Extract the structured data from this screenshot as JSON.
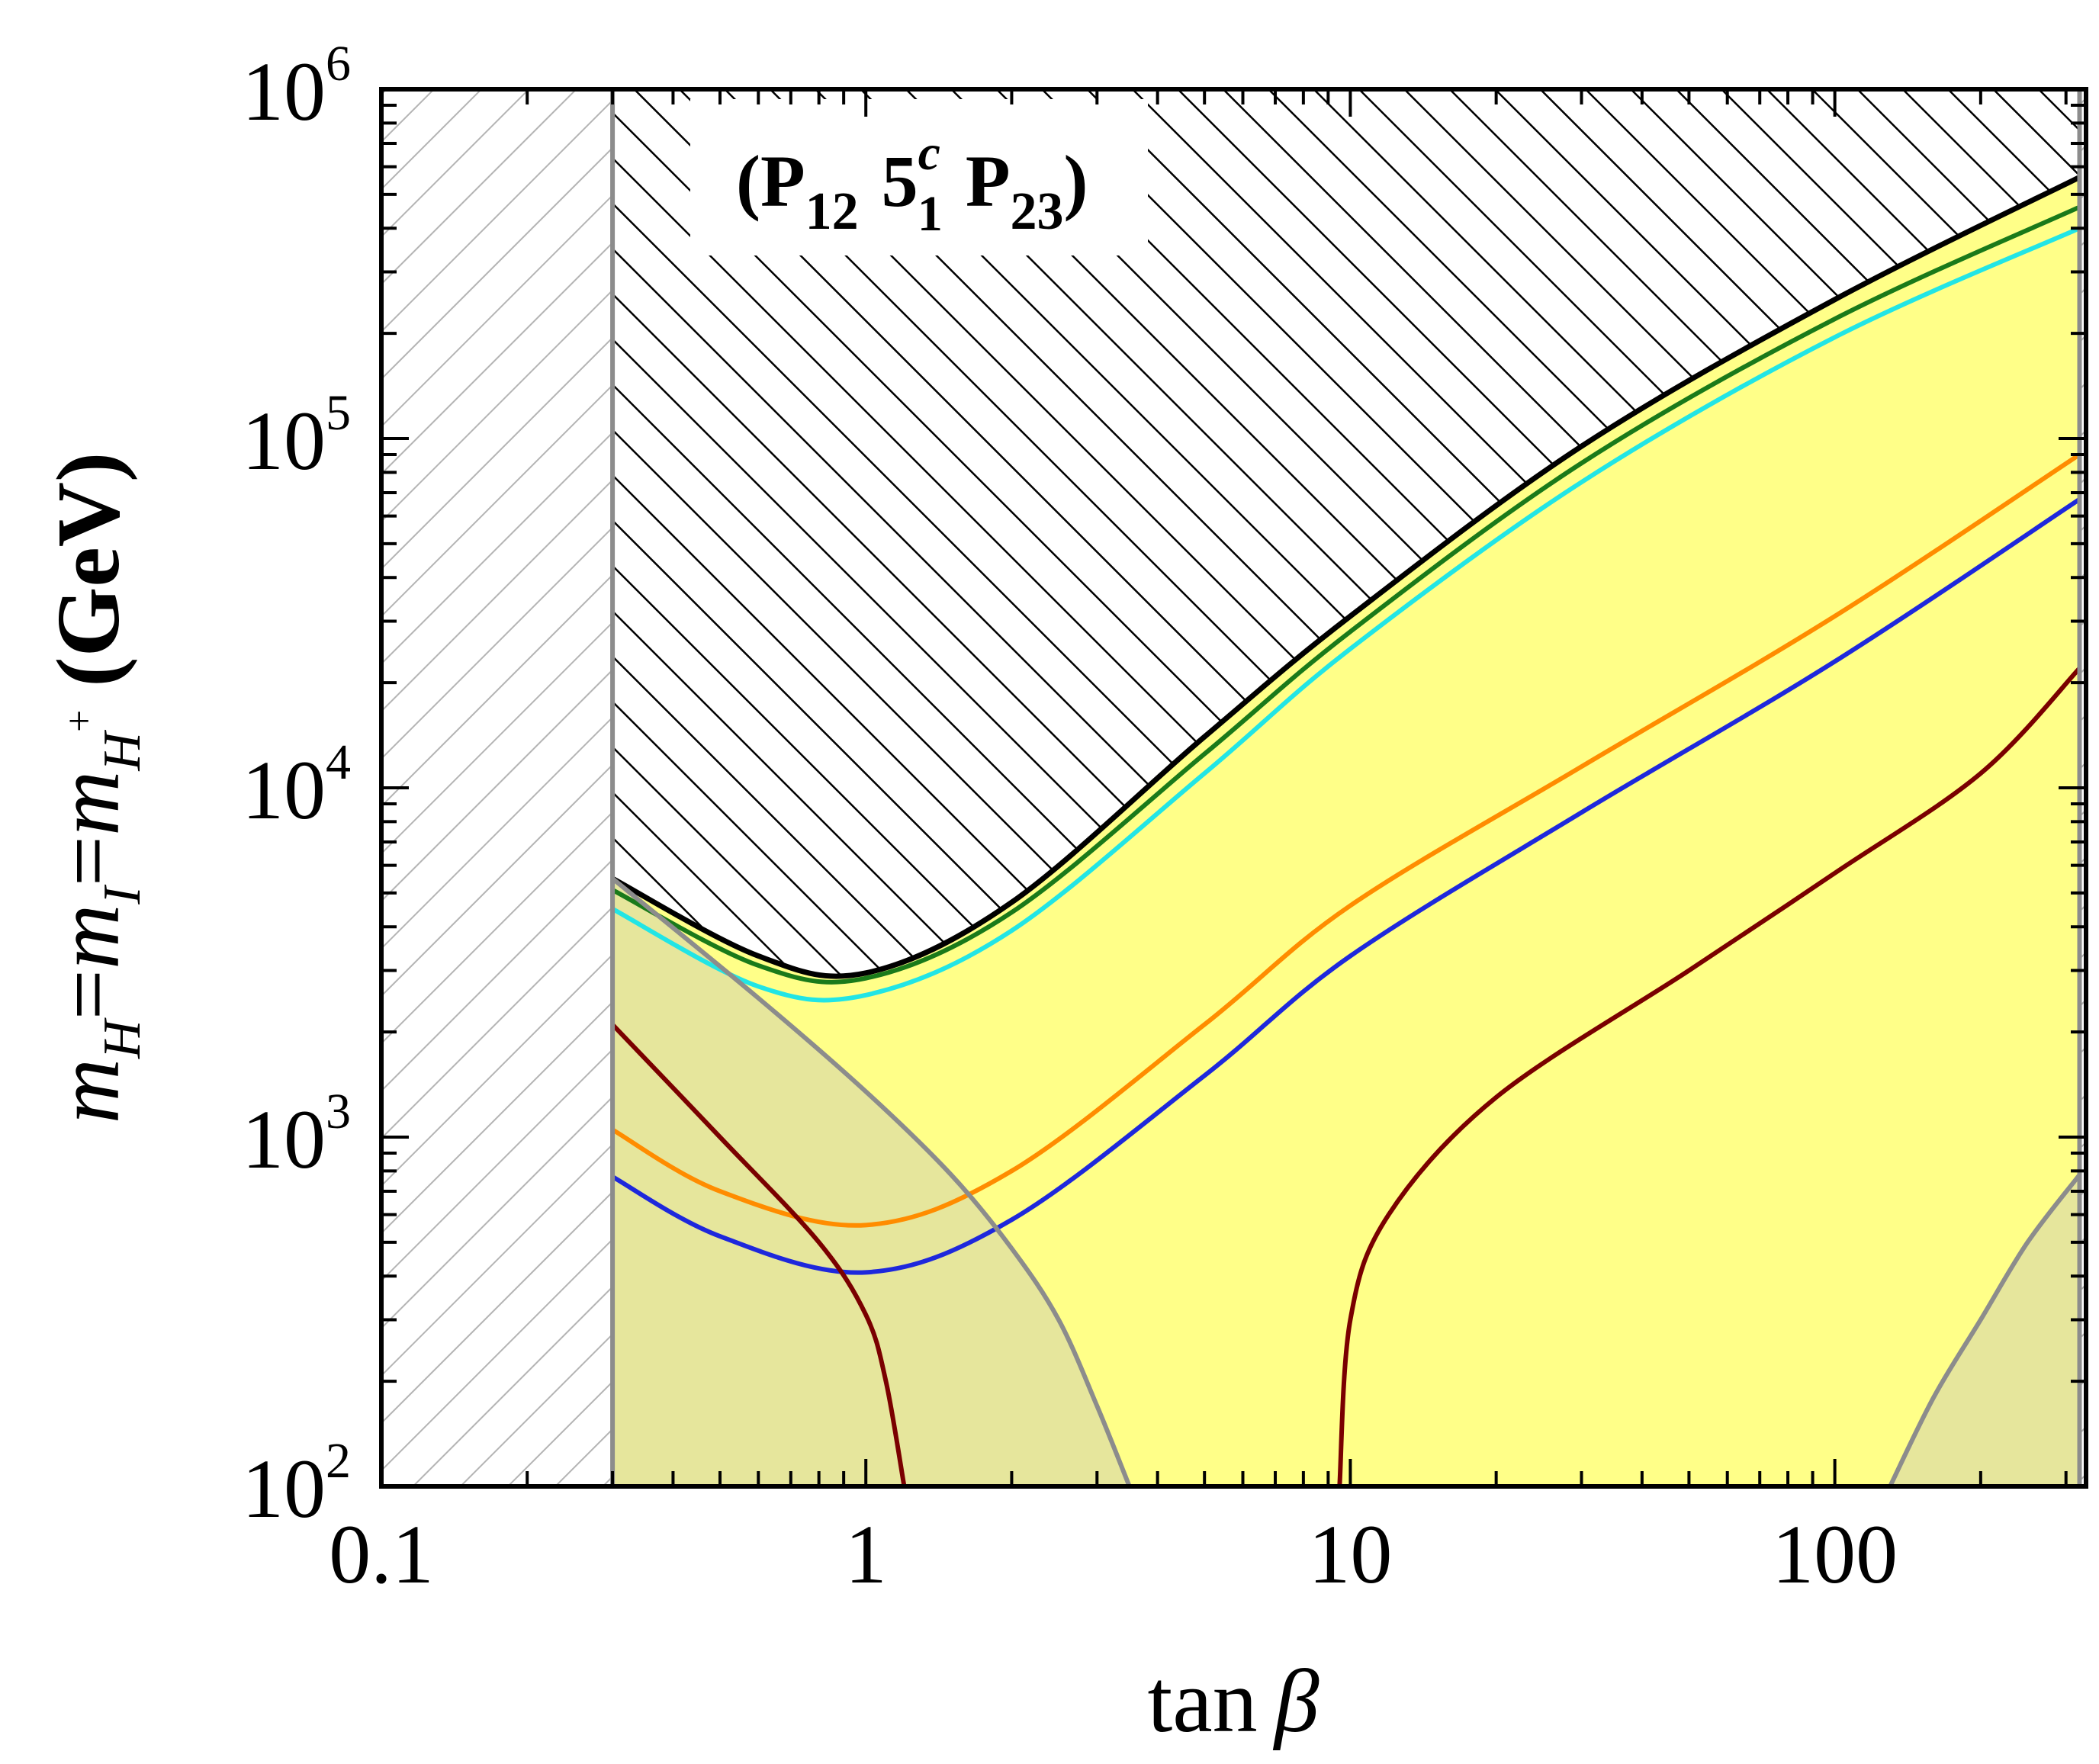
{
  "chart_data": {
    "type": "line",
    "title": "(P12 5c1 P23)",
    "title_parts": {
      "open": "(",
      "p12_main": "P",
      "p12_sub": "12",
      "five_main": "5",
      "five_sup": "c",
      "five_sub": "1",
      "p23_main": "P",
      "p23_sub": "23",
      "close": ")"
    },
    "xlabel": "tan β",
    "xlabel_parts": {
      "text": "tan",
      "symbol": "β"
    },
    "ylabel": "mH = mI = mH+ (GeV)",
    "ylabel_parts": {
      "m1": "m",
      "s1": "H",
      "eq1": "=",
      "m2": "m",
      "s2": "I",
      "eq2": "=",
      "m3": "m",
      "s3": "H",
      "sup3": "+",
      "unit": "(GeV)"
    },
    "x_scale": "log",
    "y_scale": "log",
    "xlim": [
      0.1,
      330
    ],
    "ylim": [
      100,
      1000000
    ],
    "x_ticks": [
      {
        "value": 0.1,
        "label": "0.1"
      },
      {
        "value": 1,
        "label": "1"
      },
      {
        "value": 10,
        "label": "10"
      },
      {
        "value": 100,
        "label": "100"
      }
    ],
    "y_ticks": [
      {
        "value": 100,
        "base": "10",
        "exp": "2"
      },
      {
        "value": 1000,
        "base": "10",
        "exp": "3"
      },
      {
        "value": 10000,
        "base": "10",
        "exp": "4"
      },
      {
        "value": 100000,
        "base": "10",
        "exp": "5"
      },
      {
        "value": 1000000,
        "base": "10",
        "exp": "6"
      }
    ],
    "excluded_tanb_low": 0.3,
    "excluded_tanb_high": 320,
    "colors": {
      "allowed_fill": "#ffff88",
      "gray_fill": "#e6e69c",
      "gray_line": "#8c8c8c",
      "hatch_light": "#b4b4b4",
      "hatch_dark": "#000000",
      "green": "#1a7a1a",
      "cyan": "#22e5e5",
      "orange": "#ff8c00",
      "blue": "#1e28dc",
      "darkred": "#7a0000"
    },
    "series": [
      {
        "name": "upper-boundary",
        "color": "black",
        "x": [
          0.3,
          0.6,
          1,
          2,
          5,
          10,
          30,
          100,
          320
        ],
        "y": [
          5500,
          3300,
          2950,
          4700,
          14000,
          31000,
          95000,
          250000,
          560000
        ]
      },
      {
        "name": "green",
        "color": "green",
        "x": [
          0.3,
          0.6,
          1,
          2,
          5,
          10,
          30,
          100,
          320
        ],
        "y": [
          5100,
          3100,
          2850,
          4400,
          12500,
          28000,
          85000,
          220000,
          460000
        ]
      },
      {
        "name": "cyan",
        "color": "cyan",
        "x": [
          0.3,
          0.6,
          1,
          2,
          5,
          10,
          30,
          100,
          320
        ],
        "y": [
          4500,
          2700,
          2550,
          3900,
          11000,
          25000,
          75000,
          195000,
          400000
        ]
      },
      {
        "name": "orange",
        "color": "orange",
        "x": [
          0.3,
          0.5,
          1,
          2,
          5,
          10,
          30,
          100,
          320
        ],
        "y": [
          1050,
          700,
          560,
          800,
          2100,
          4600,
          11500,
          31000,
          90000
        ]
      },
      {
        "name": "blue",
        "color": "blue",
        "x": [
          0.3,
          0.5,
          1,
          2,
          5,
          10,
          30,
          100,
          320
        ],
        "y": [
          770,
          520,
          410,
          580,
          1500,
          3300,
          8500,
          23000,
          67000
        ]
      },
      {
        "name": "darkred-left",
        "color": "darkred",
        "x": [
          0.3,
          0.5,
          0.8,
          1,
          1.1,
          1.2
        ],
        "y": [
          2100,
          1000,
          500,
          310,
          200,
          100
        ]
      },
      {
        "name": "darkred-right",
        "color": "darkred",
        "x": [
          9.5,
          10,
          12,
          20,
          50,
          100,
          200,
          320
        ],
        "y": [
          100,
          300,
          600,
          1300,
          3000,
          5700,
          11000,
          22000
        ]
      },
      {
        "name": "gray-left",
        "color": "gray",
        "x": [
          0.3,
          0.6,
          1,
          1.5,
          2,
          2.5,
          3,
          3.5
        ],
        "y": [
          5500,
          2500,
          1350,
          780,
          480,
          300,
          170,
          100
        ]
      },
      {
        "name": "gray-right",
        "color": "gray",
        "x": [
          130,
          160,
          200,
          250,
          320
        ],
        "y": [
          100,
          180,
          300,
          500,
          780
        ]
      }
    ]
  }
}
